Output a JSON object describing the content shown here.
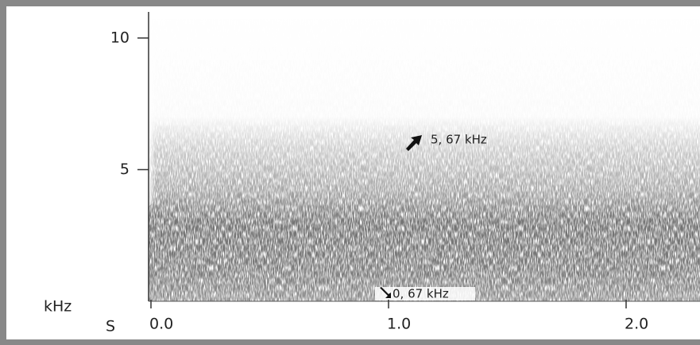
{
  "chart_data": {
    "type": "spectrogram",
    "ylabel": "kHz",
    "xlabel": "S",
    "xlim": [
      0,
      2.3
    ],
    "ylim": [
      0,
      11
    ],
    "xticks": [
      {
        "value": 0,
        "label": "0.0"
      },
      {
        "value": 1,
        "label": "1.0"
      },
      {
        "value": 2,
        "label": "2.0"
      }
    ],
    "yticks": [
      5,
      10
    ],
    "annotations": [
      "5, 67 kHz",
      "0, 67 kHz"
    ]
  }
}
